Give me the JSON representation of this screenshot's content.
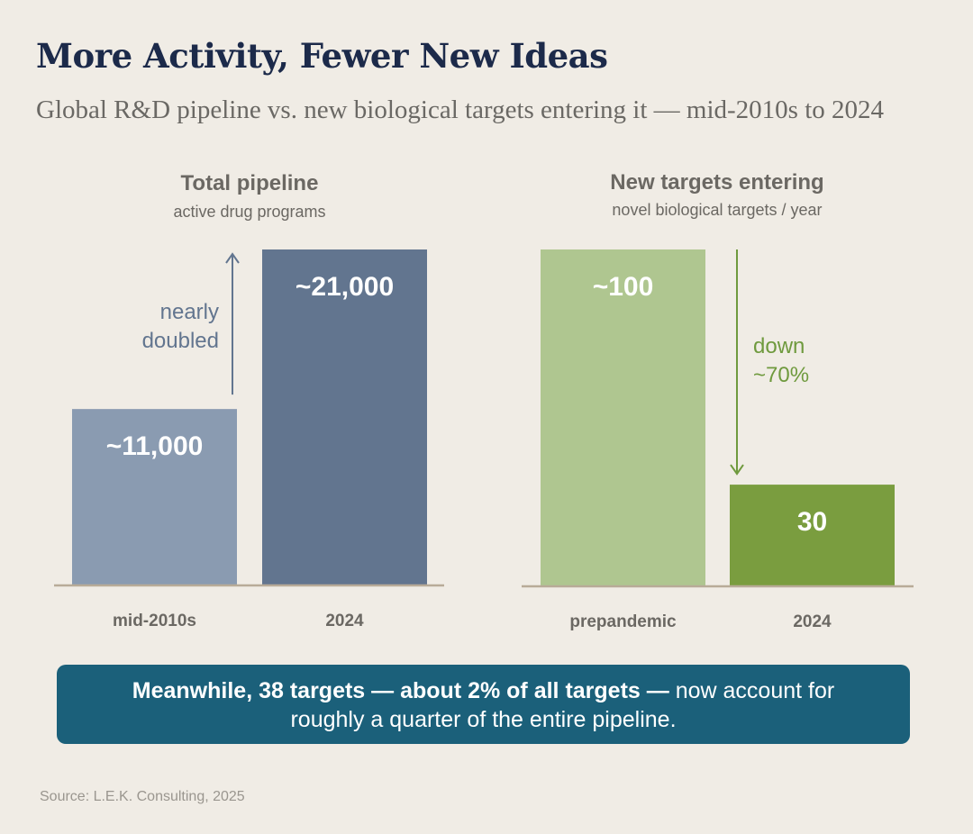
{
  "title": "More Activity, Fewer New Ideas",
  "subtitle": "Global R&D pipeline vs. new biological targets entering it — mid-2010s to 2024",
  "chart_data": [
    {
      "type": "bar",
      "title": "Total pipeline",
      "subtitle": "active drug programs",
      "categories": [
        "mid-2010s",
        "2024"
      ],
      "values": [
        11000,
        21000
      ],
      "value_labels": [
        "~11,000",
        "~21,000"
      ],
      "colors": [
        "#8a9bb1",
        "#62758f"
      ],
      "ylim": [
        0,
        21000
      ],
      "annotation": [
        "nearly",
        "doubled"
      ],
      "annotation_color": "#62758f",
      "annotation_direction": "up"
    },
    {
      "type": "bar",
      "title": "New targets entering",
      "subtitle": "novel biological targets / year",
      "categories": [
        "prepandemic",
        "2024"
      ],
      "values": [
        100,
        30
      ],
      "value_labels": [
        "~100",
        "30"
      ],
      "colors": [
        "#afc690",
        "#7a9d3f"
      ],
      "ylim": [
        0,
        100
      ],
      "annotation": [
        "down",
        "~70%"
      ],
      "annotation_color": "#6f9a3e",
      "annotation_direction": "down"
    }
  ],
  "callout": {
    "bold": "Meanwhile, 38 targets — about 2% of all targets —",
    "rest": " now account for roughly a quarter of the entire pipeline."
  },
  "source": "Source: L.E.K. Consulting, 2025"
}
